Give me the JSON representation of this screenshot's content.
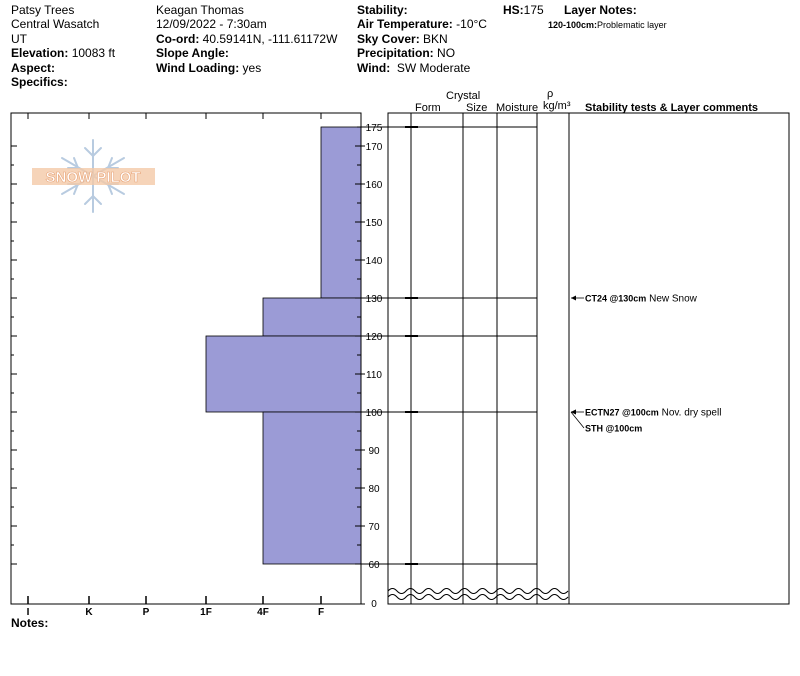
{
  "header": {
    "col1": {
      "location": "Patsy Trees",
      "range": "Central Wasatch",
      "state": "UT",
      "elevation_label": "Elevation:",
      "elevation_value": "10083 ft",
      "aspect_label": "Aspect:",
      "specifics_label": "Specifics:"
    },
    "col2": {
      "observer": "Keagan Thomas",
      "datetime": "12/09/2022 - 7:30am",
      "coord_label": "Co-ord:",
      "coord_value": "40.59141N, -111.61172W",
      "slope_label": "Slope Angle:",
      "wind_loading_label": "Wind Loading:",
      "wind_loading_value": "yes"
    },
    "col3": {
      "stability_label": "Stability:",
      "air_temp_label": "Air Temperature:",
      "air_temp_value": "-10°C",
      "sky_label": "Sky Cover:",
      "sky_value": "BKN",
      "precip_label": "Precipitation:",
      "precip_value": "NO",
      "wind_label": "Wind:",
      "wind_value": "SW Moderate"
    },
    "hs_label": "HS:",
    "hs_value": "175",
    "layer_notes_label": "Layer Notes:",
    "layer_note_range": "120-100cm:",
    "layer_note_text": "Problematic layer"
  },
  "watermark": "SNOW PILOT",
  "column_headers": {
    "crystal": "Crystal",
    "form": "Form",
    "size": "Size",
    "moisture": "Moisture",
    "rho": "ρ",
    "density_unit": "kg/m³",
    "comments": "Stability tests & Layer comments"
  },
  "hardness_labels": [
    "I",
    "K",
    "P",
    "1F",
    "4F",
    "F"
  ],
  "depth_ticks": [
    0,
    60,
    70,
    80,
    90,
    100,
    110,
    120,
    130,
    140,
    150,
    160,
    170,
    175
  ],
  "chart_data": {
    "type": "bar",
    "x_categories": [
      "I",
      "K",
      "P",
      "1F",
      "4F",
      "F"
    ],
    "layers": [
      {
        "top": 175,
        "bottom": 130,
        "hardness": "F"
      },
      {
        "top": 130,
        "bottom": 120,
        "hardness": "4F"
      },
      {
        "top": 120,
        "bottom": 100,
        "hardness": "1F"
      },
      {
        "top": 100,
        "bottom": 60,
        "hardness": "4F"
      }
    ],
    "y_range": [
      0,
      175
    ],
    "layer_boundaries": [
      175,
      130,
      120,
      100,
      60
    ]
  },
  "stability_tests": [
    {
      "depth": 130,
      "code": "CT24 @130cm",
      "comment": "New Snow"
    },
    {
      "depth": 100,
      "code": "ECTN27 @100cm",
      "comment": "Nov. dry spell"
    },
    {
      "depth": 100,
      "code": "STH @100cm",
      "comment": ""
    }
  ],
  "notes_label": "Notes:"
}
